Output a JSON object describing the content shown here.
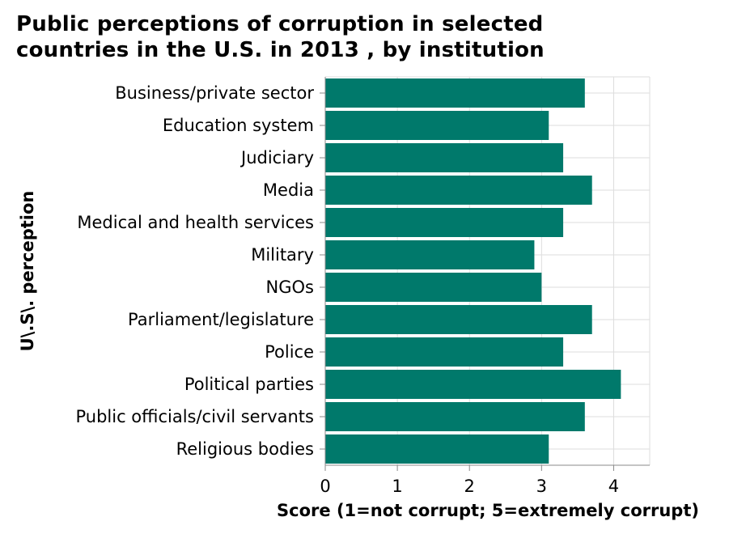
{
  "chart_data": {
    "type": "bar",
    "orientation": "horizontal",
    "title_lines": [
      "Public perceptions of corruption in selected",
      "countries in the U.S. in 2013 , by institution"
    ],
    "xlabel": "Score (1=not corrupt; 5=extremely corrupt)",
    "ylabel": "U\\.S\\. perception",
    "xlim": [
      0,
      4.5
    ],
    "xticks": [
      0,
      1,
      2,
      3,
      4
    ],
    "grid": true,
    "bar_color": "#00796b",
    "categories": [
      "Business/private sector",
      "Education system",
      "Judiciary",
      "Media",
      "Medical and health services",
      "Military",
      "NGOs",
      "Parliament/legislature",
      "Police",
      "Political parties",
      "Public officials/civil servants",
      "Religious bodies"
    ],
    "values": [
      3.6,
      3.1,
      3.3,
      3.7,
      3.3,
      2.9,
      3.0,
      3.7,
      3.3,
      4.1,
      3.6,
      3.1
    ]
  }
}
